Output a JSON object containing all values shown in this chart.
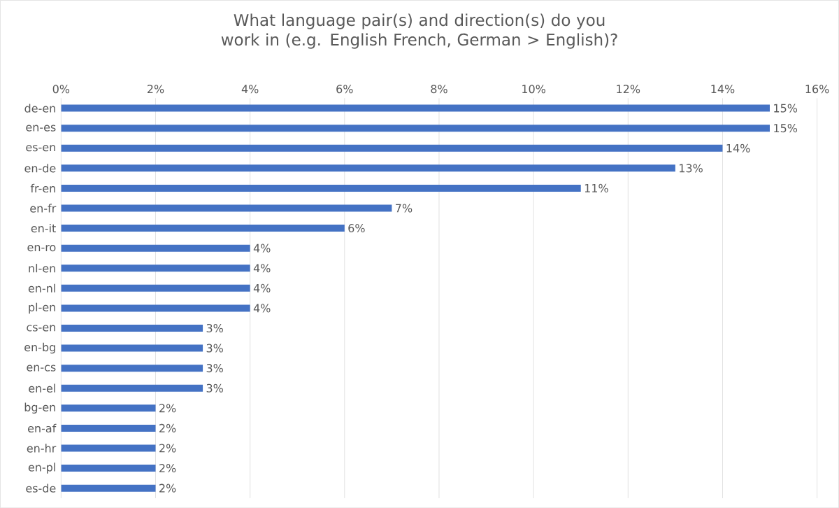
{
  "chart_data": {
    "type": "bar",
    "orientation": "horizontal",
    "title": "What language pair(s) and direction(s) do you work in (e.g. English French, German > English)?",
    "categories": [
      "de-en",
      "en-es",
      "es-en",
      "en-de",
      "fr-en",
      "en-fr",
      "en-it",
      "en-ro",
      "nl-en",
      "en-nl",
      "pl-en",
      "cs-en",
      "en-bg",
      "en-cs",
      "en-el",
      "bg-en",
      "en-af",
      "en-hr",
      "en-pl",
      "es-de"
    ],
    "values": [
      15,
      15,
      14,
      13,
      11,
      7,
      6,
      4,
      4,
      4,
      4,
      3,
      3,
      3,
      3,
      2,
      2,
      2,
      2,
      2
    ],
    "value_labels": [
      "15%",
      "15%",
      "14%",
      "13%",
      "11%",
      "7%",
      "6%",
      "4%",
      "4%",
      "4%",
      "4%",
      "3%",
      "3%",
      "3%",
      "3%",
      "2%",
      "2%",
      "2%",
      "2%",
      "2%"
    ],
    "color": "#4472c4",
    "xlim": [
      0,
      16
    ],
    "xticks": [
      {
        "value": 0,
        "label": "0%"
      },
      {
        "value": 2,
        "label": "2%"
      },
      {
        "value": 4,
        "label": "4%"
      },
      {
        "value": 6,
        "label": "6%"
      },
      {
        "value": 8,
        "label": "8%"
      },
      {
        "value": 10,
        "label": "10%"
      },
      {
        "value": 12,
        "label": "12%"
      },
      {
        "value": 14,
        "label": "14%"
      },
      {
        "value": 16,
        "label": "16%"
      }
    ],
    "grid": "x"
  }
}
